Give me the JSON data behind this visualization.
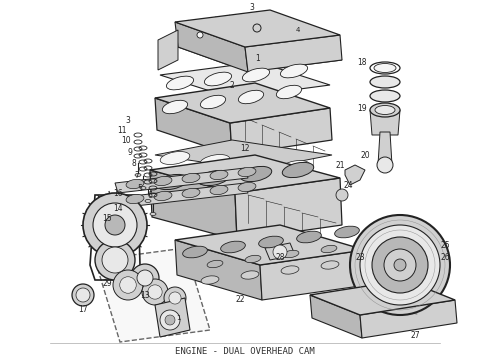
{
  "title": "ENGINE - DUAL OVERHEAD CAM",
  "title_fontsize": 6.5,
  "title_color": "#333333",
  "background_color": "#ffffff",
  "fig_width": 4.9,
  "fig_height": 3.6,
  "dpi": 100,
  "line_color": "#222222",
  "fill_light": "#e8e8e8",
  "fill_mid": "#d0d0d0",
  "fill_dark": "#b8b8b8",
  "fill_white": "#f5f5f5"
}
